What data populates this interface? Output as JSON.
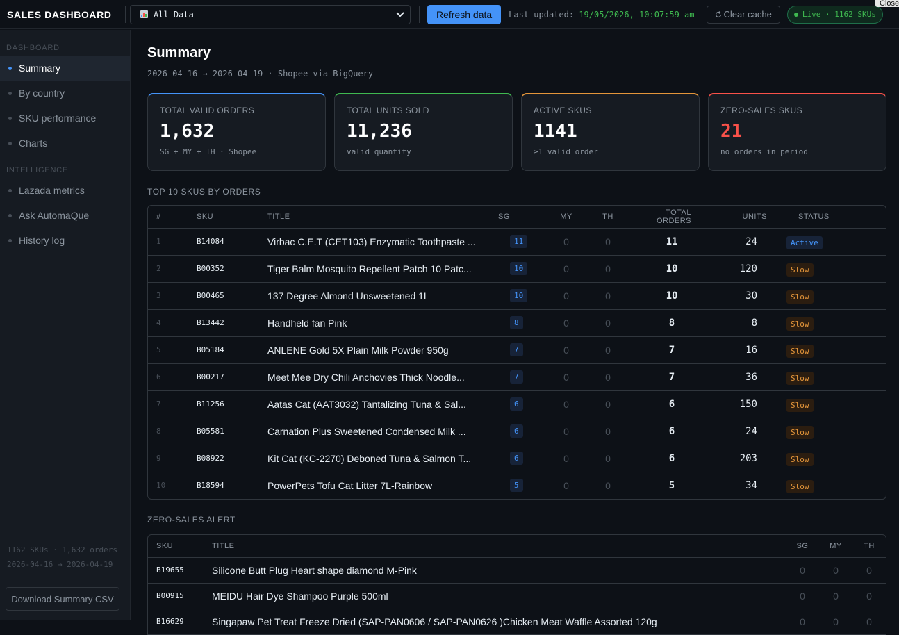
{
  "topbar": {
    "brand": "SALES DASHBOARD",
    "source_selected": "All Data",
    "refresh_label": "Refresh data",
    "updated_label": "Last updated:",
    "updated_value": "19/05/2026, 10:07:59 am",
    "clear_cache_label": "Clear cache",
    "live_label": "Live · 1162 SKUs",
    "close_tooltip": "Close"
  },
  "sidebar": {
    "section_dashboard": "DASHBOARD",
    "dashboard_items": [
      {
        "label": "Summary",
        "active": true
      },
      {
        "label": "By country"
      },
      {
        "label": "SKU performance"
      },
      {
        "label": "Charts"
      }
    ],
    "section_intelligence": "INTELLIGENCE",
    "intelligence_items": [
      {
        "label": "Lazada metrics"
      },
      {
        "label": "Ask AutomaQue"
      },
      {
        "label": "History log"
      }
    ],
    "stats_line1": "1162 SKUs · 1,632 orders",
    "stats_line2": "2026-04-16 → 2026-04-19",
    "download_label": "Download Summary CSV"
  },
  "summary": {
    "title": "Summary",
    "subtitle": "2026-04-16 → 2026-04-19 · Shopee via BigQuery",
    "cards": [
      {
        "label": "TOTAL VALID ORDERS",
        "value": "1,632",
        "hint": "SG + MY + TH · Shopee",
        "accent": "#4493f8"
      },
      {
        "label": "TOTAL UNITS SOLD",
        "value": "11,236",
        "hint": "valid quantity",
        "accent": "#3fb950"
      },
      {
        "label": "ACTIVE SKUS",
        "value": "1141",
        "hint": "≥1 valid order",
        "accent": "#e3953a"
      },
      {
        "label": "ZERO-SALES SKUS",
        "value": "21",
        "hint": "no orders in period",
        "accent": "#f85149"
      }
    ]
  },
  "top10": {
    "title": "TOP 10 SKUS BY ORDERS",
    "headers": {
      "rank": "#",
      "sku": "SKU",
      "title": "TITLE",
      "sg": "SG",
      "my": "MY",
      "th": "TH",
      "total": "TOTAL ORDERS",
      "units": "UNITS",
      "status": "STATUS"
    },
    "rows": [
      {
        "rank": "1",
        "sku": "B14084",
        "title": "Virbac C.E.T (CET103) Enzymatic Toothpaste ...",
        "sg": "11",
        "my": "0",
        "th": "0",
        "total": "11",
        "units": "24",
        "status": "Active"
      },
      {
        "rank": "2",
        "sku": "B00352",
        "title": "Tiger Balm Mosquito Repellent Patch 10 Patc...",
        "sg": "10",
        "my": "0",
        "th": "0",
        "total": "10",
        "units": "120",
        "status": "Slow"
      },
      {
        "rank": "3",
        "sku": "B00465",
        "title": "137 Degree Almond Unsweetened 1L",
        "sg": "10",
        "my": "0",
        "th": "0",
        "total": "10",
        "units": "30",
        "status": "Slow"
      },
      {
        "rank": "4",
        "sku": "B13442",
        "title": "Handheld fan Pink",
        "sg": "8",
        "my": "0",
        "th": "0",
        "total": "8",
        "units": "8",
        "status": "Slow"
      },
      {
        "rank": "5",
        "sku": "B05184",
        "title": "ANLENE Gold 5X Plain Milk Powder 950g",
        "sg": "7",
        "my": "0",
        "th": "0",
        "total": "7",
        "units": "16",
        "status": "Slow"
      },
      {
        "rank": "6",
        "sku": "B00217",
        "title": "Meet Mee Dry Chili Anchovies Thick Noodle...",
        "sg": "7",
        "my": "0",
        "th": "0",
        "total": "7",
        "units": "36",
        "status": "Slow"
      },
      {
        "rank": "7",
        "sku": "B11256",
        "title": "Aatas Cat (AAT3032) Tantalizing Tuna & Sal...",
        "sg": "6",
        "my": "0",
        "th": "0",
        "total": "6",
        "units": "150",
        "status": "Slow"
      },
      {
        "rank": "8",
        "sku": "B05581",
        "title": "Carnation Plus Sweetened Condensed Milk ...",
        "sg": "6",
        "my": "0",
        "th": "0",
        "total": "6",
        "units": "24",
        "status": "Slow"
      },
      {
        "rank": "9",
        "sku": "B08922",
        "title": "Kit Cat (KC-2270) Deboned Tuna & Salmon T...",
        "sg": "6",
        "my": "0",
        "th": "0",
        "total": "6",
        "units": "203",
        "status": "Slow"
      },
      {
        "rank": "10",
        "sku": "B18594",
        "title": "PowerPets Tofu Cat Litter 7L-Rainbow",
        "sg": "5",
        "my": "0",
        "th": "0",
        "total": "5",
        "units": "34",
        "status": "Slow"
      }
    ]
  },
  "zero_sales": {
    "title": "ZERO-SALES ALERT",
    "headers": {
      "sku": "SKU",
      "title": "TITLE",
      "sg": "SG",
      "my": "MY",
      "th": "TH"
    },
    "rows": [
      {
        "sku": "B19655",
        "title": "Silicone Butt Plug Heart shape diamond M-Pink",
        "sg": "0",
        "my": "0",
        "th": "0"
      },
      {
        "sku": "B00915",
        "title": "MEIDU Hair Dye Shampoo Purple 500ml",
        "sg": "0",
        "my": "0",
        "th": "0"
      },
      {
        "sku": "B16629",
        "title": "Singapaw Pet Treat Freeze Dried (SAP-PAN0606 / SAP-PAN0626 )Chicken Meat Waffle Assorted 120g",
        "sg": "0",
        "my": "0",
        "th": "0"
      }
    ]
  }
}
